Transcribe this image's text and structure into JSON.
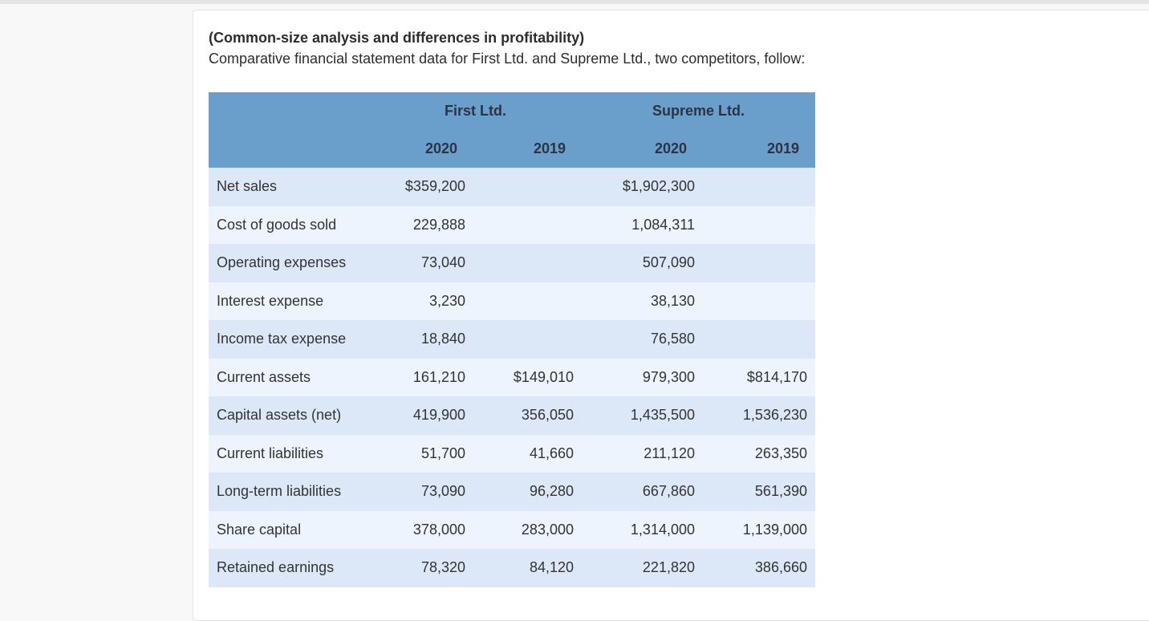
{
  "problem": {
    "title": "(Common-size analysis and differences in profitability)",
    "intro": "Comparative financial statement data for First Ltd. and Supreme Ltd., two competitors, follow:"
  },
  "table": {
    "companies": [
      "First Ltd.",
      "Supreme Ltd."
    ],
    "years": [
      "2020",
      "2019",
      "2020",
      "2019"
    ],
    "rows": [
      {
        "label": "Net sales",
        "values": [
          "$359,200",
          "",
          "$1,902,300",
          ""
        ]
      },
      {
        "label": "Cost of goods sold",
        "values": [
          "229,888",
          "",
          "1,084,311",
          ""
        ]
      },
      {
        "label": "Operating expenses",
        "values": [
          "73,040",
          "",
          "507,090",
          ""
        ]
      },
      {
        "label": "Interest expense",
        "values": [
          "3,230",
          "",
          "38,130",
          ""
        ]
      },
      {
        "label": "Income tax expense",
        "values": [
          "18,840",
          "",
          "76,580",
          ""
        ]
      },
      {
        "label": "Current assets",
        "values": [
          "161,210",
          "$149,010",
          "979,300",
          "$814,170"
        ]
      },
      {
        "label": "Capital assets (net)",
        "values": [
          "419,900",
          "356,050",
          "1,435,500",
          "1,536,230"
        ]
      },
      {
        "label": "Current liabilities",
        "values": [
          "51,700",
          "41,660",
          "211,120",
          "263,350"
        ]
      },
      {
        "label": "Long-term liabilities",
        "values": [
          "73,090",
          "96,280",
          "667,860",
          "561,390"
        ]
      },
      {
        "label": "Share capital",
        "values": [
          "378,000",
          "283,000",
          "1,314,000",
          "1,139,000"
        ]
      },
      {
        "label": "Retained earnings",
        "values": [
          "78,320",
          "84,120",
          "221,820",
          "386,660"
        ]
      }
    ]
  },
  "colors": {
    "header": "#6a9ecb",
    "row_odd": "#dce8f8",
    "row_even": "#edf4fe"
  }
}
